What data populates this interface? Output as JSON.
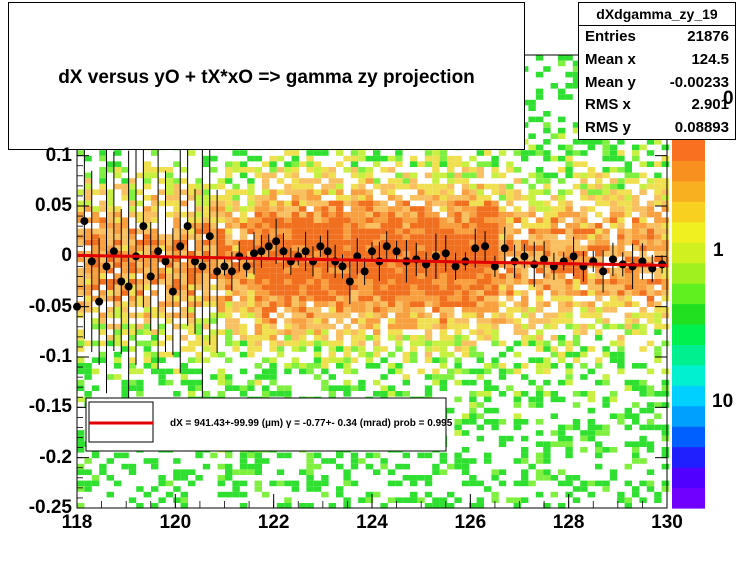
{
  "title": "dX  versus  yO + tX*xO =>  gamma zy projection",
  "stats": {
    "name": "dXdgamma_zy_19",
    "rows": [
      {
        "label": "Entries",
        "value": "21876"
      },
      {
        "label": "Mean x",
        "value": "124.5"
      },
      {
        "label": "Mean y",
        "value": "-0.00233"
      },
      {
        "label": "RMS x",
        "value": "2.901"
      },
      {
        "label": "RMS y",
        "value": "0.08893"
      }
    ]
  },
  "legend": {
    "text": "dX =  941.43+-99.99 (µm) γ =   -0.77+- 0.34 (mrad) prob = 0.995",
    "line_color": "#e00000"
  },
  "palette_labels": [
    "1",
    "10",
    "0"
  ],
  "colors": {
    "fit_line": "#e00000",
    "points": "#000000",
    "frame": "#000000"
  },
  "chart_data": {
    "type": "heatmap",
    "title": "dX  versus  yO + tX*xO =>  gamma zy projection",
    "xlabel": "",
    "ylabel": "",
    "xlim": [
      118,
      130
    ],
    "ylim": [
      -0.25,
      0.2
    ],
    "x_ticks": [
      "118",
      "120",
      "122",
      "124",
      "126",
      "128",
      "130"
    ],
    "y_ticks": [
      "-0.25",
      "-0.2",
      "-0.15",
      "-0.1",
      "-0.05",
      "0",
      "0.05",
      "0.1"
    ],
    "z_scale": "log",
    "profile_points": [
      {
        "x": 118.0,
        "y": -0.05
      },
      {
        "x": 118.15,
        "y": 0.035
      },
      {
        "x": 118.3,
        "y": -0.005
      },
      {
        "x": 118.45,
        "y": -0.045
      },
      {
        "x": 118.6,
        "y": -0.01
      },
      {
        "x": 118.75,
        "y": 0.005
      },
      {
        "x": 118.9,
        "y": -0.025
      },
      {
        "x": 119.05,
        "y": -0.03
      },
      {
        "x": 119.2,
        "y": 0.0
      },
      {
        "x": 119.35,
        "y": 0.03
      },
      {
        "x": 119.5,
        "y": -0.02
      },
      {
        "x": 119.65,
        "y": 0.005
      },
      {
        "x": 119.8,
        "y": -0.005
      },
      {
        "x": 119.95,
        "y": -0.035
      },
      {
        "x": 120.1,
        "y": 0.01
      },
      {
        "x": 120.25,
        "y": 0.03
      },
      {
        "x": 120.4,
        "y": -0.005
      },
      {
        "x": 120.55,
        "y": -0.01
      },
      {
        "x": 120.7,
        "y": 0.02
      },
      {
        "x": 120.85,
        "y": -0.015
      },
      {
        "x": 121.0,
        "y": -0.01
      },
      {
        "x": 121.15,
        "y": -0.015
      },
      {
        "x": 121.3,
        "y": 0.0
      },
      {
        "x": 121.45,
        "y": -0.01
      },
      {
        "x": 121.6,
        "y": 0.003
      },
      {
        "x": 121.75,
        "y": 0.005
      },
      {
        "x": 121.9,
        "y": 0.01
      },
      {
        "x": 122.05,
        "y": 0.015
      },
      {
        "x": 122.2,
        "y": 0.005
      },
      {
        "x": 122.35,
        "y": -0.005
      },
      {
        "x": 122.5,
        "y": 0.0
      },
      {
        "x": 122.65,
        "y": 0.005
      },
      {
        "x": 122.8,
        "y": -0.005
      },
      {
        "x": 122.95,
        "y": 0.01
      },
      {
        "x": 123.1,
        "y": 0.005
      },
      {
        "x": 123.25,
        "y": -0.005
      },
      {
        "x": 123.4,
        "y": -0.01
      },
      {
        "x": 123.55,
        "y": -0.025
      },
      {
        "x": 123.7,
        "y": 0.0
      },
      {
        "x": 123.85,
        "y": -0.015
      },
      {
        "x": 124.0,
        "y": 0.005
      },
      {
        "x": 124.15,
        "y": -0.005
      },
      {
        "x": 124.3,
        "y": 0.01
      },
      {
        "x": 124.5,
        "y": 0.005
      },
      {
        "x": 124.7,
        "y": -0.005
      },
      {
        "x": 124.9,
        "y": -0.003
      },
      {
        "x": 125.1,
        "y": -0.008
      },
      {
        "x": 125.3,
        "y": 0.0
      },
      {
        "x": 125.5,
        "y": 0.003
      },
      {
        "x": 125.7,
        "y": -0.01
      },
      {
        "x": 125.9,
        "y": -0.005
      },
      {
        "x": 126.1,
        "y": 0.008
      },
      {
        "x": 126.3,
        "y": 0.01
      },
      {
        "x": 126.5,
        "y": -0.01
      },
      {
        "x": 126.7,
        "y": 0.008
      },
      {
        "x": 126.9,
        "y": -0.005
      },
      {
        "x": 127.1,
        "y": 0.0
      },
      {
        "x": 127.3,
        "y": -0.008
      },
      {
        "x": 127.5,
        "y": -0.003
      },
      {
        "x": 127.7,
        "y": -0.01
      },
      {
        "x": 127.9,
        "y": -0.005
      },
      {
        "x": 128.1,
        "y": 0.0
      },
      {
        "x": 128.3,
        "y": -0.01
      },
      {
        "x": 128.5,
        "y": -0.005
      },
      {
        "x": 128.7,
        "y": -0.015
      },
      {
        "x": 128.9,
        "y": -0.003
      },
      {
        "x": 129.1,
        "y": -0.008
      },
      {
        "x": 129.3,
        "y": -0.01
      },
      {
        "x": 129.5,
        "y": -0.005
      },
      {
        "x": 129.7,
        "y": -0.012
      },
      {
        "x": 129.9,
        "y": -0.008
      }
    ],
    "fit_line": {
      "x": [
        118,
        130
      ],
      "y": [
        0.001,
        -0.009
      ]
    }
  }
}
